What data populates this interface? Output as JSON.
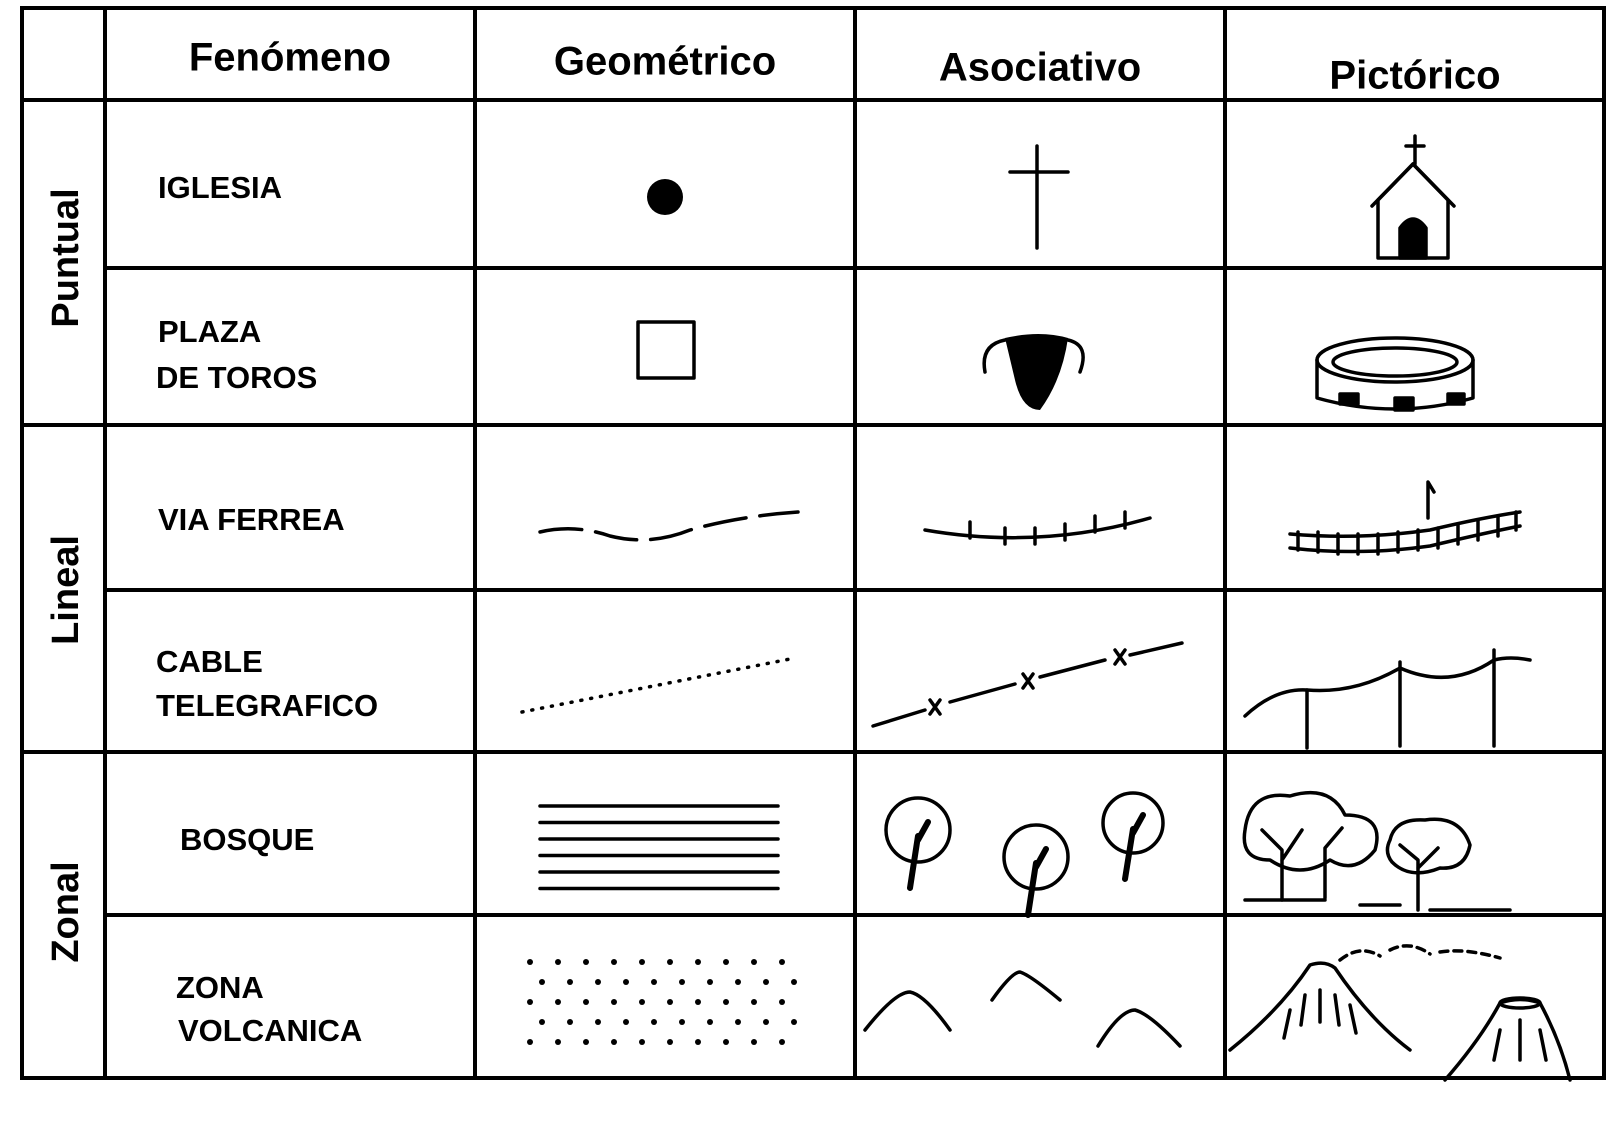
{
  "table": {
    "header": [
      "Fenómeno",
      "Geométrico",
      "Asociativo",
      "Pictórico"
    ],
    "groups": [
      {
        "label": "Puntual",
        "phenomena": [
          [
            "IGLESIA"
          ],
          [
            "PLAZA",
            "DE TOROS"
          ]
        ]
      },
      {
        "label": "Lineal",
        "phenomena": [
          [
            "VIA FERREA"
          ],
          [
            "CABLE",
            "TELEGRAFICO"
          ]
        ]
      },
      {
        "label": "Zonal",
        "phenomena": [
          [
            "BOSQUE"
          ],
          [
            "ZONA",
            "VOLCANICA"
          ]
        ]
      }
    ]
  }
}
